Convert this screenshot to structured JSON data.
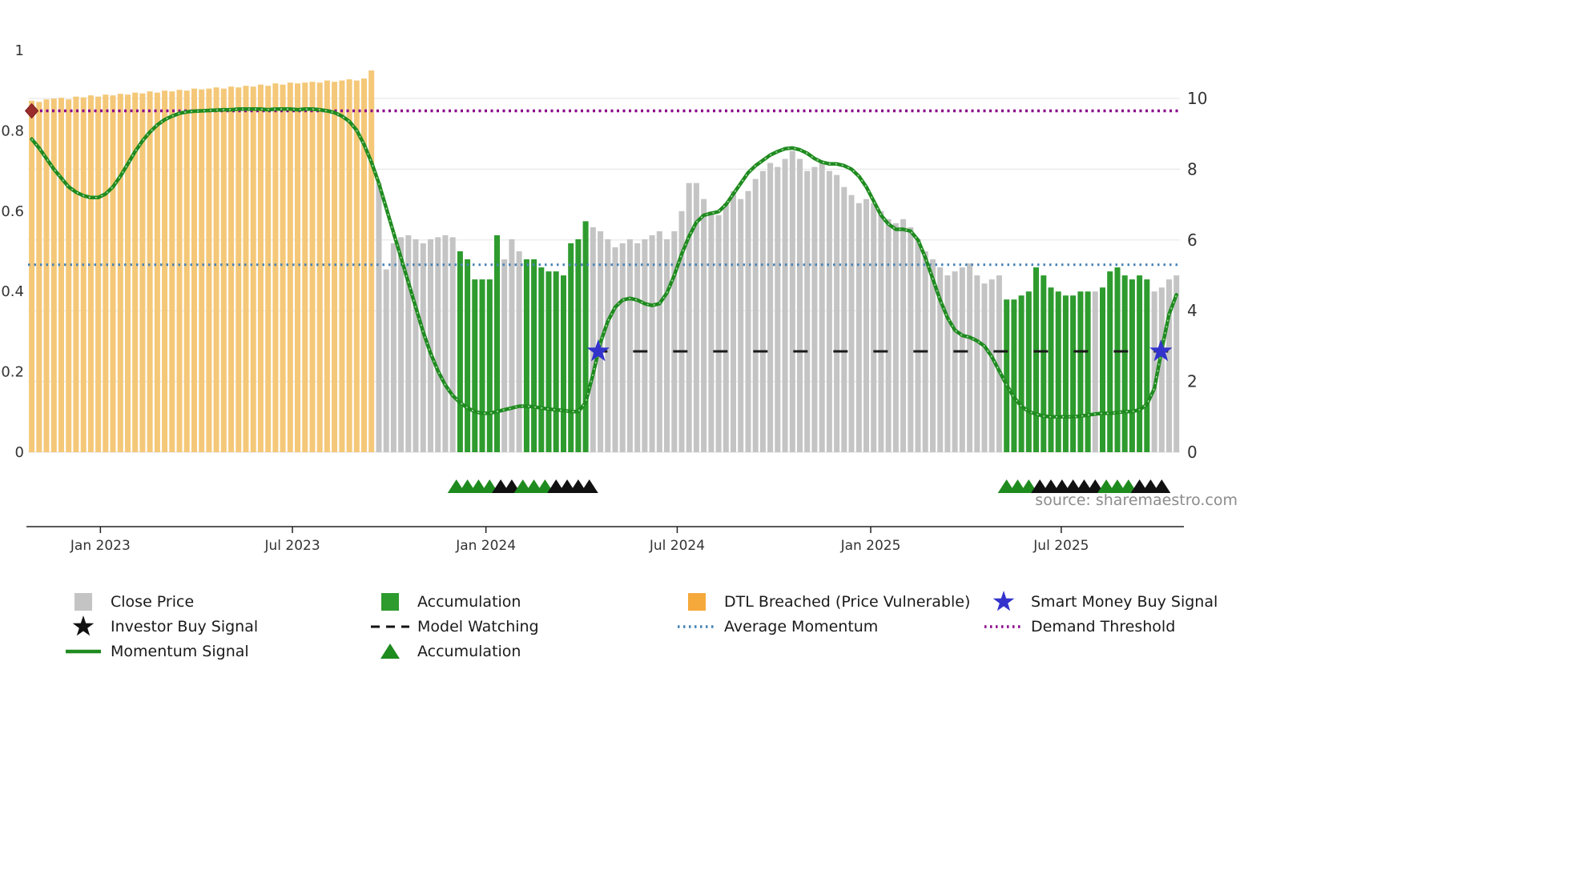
{
  "meta": {
    "source_text": "source: sharemaestro.com"
  },
  "chart_data": {
    "type": "bar+line",
    "x_axis": {
      "tick_labels": [
        "Jan 2023",
        "Jul 2023",
        "Jan 2024",
        "Jul 2024",
        "Jan 2025",
        "Jul 2025"
      ],
      "tick_positions_index": [
        9.3,
        35.3,
        61.5,
        87.4,
        113.6,
        139.4
      ],
      "n_points": 156
    },
    "left_axis": {
      "ticks": [
        1,
        0.8,
        0.6,
        0.4,
        0.2,
        0
      ],
      "range": [
        0,
        1
      ]
    },
    "right_axis": {
      "ticks": [
        10,
        8,
        6,
        4,
        2,
        0
      ],
      "range": [
        0,
        10
      ]
    },
    "colors": {
      "close": "#C4C4C4",
      "accumulation": "#2E9B2E",
      "dtl_breached": "#F4C878",
      "momentum": "#1F8B1F",
      "momentum_overlay": "#A6D7A6",
      "demand_threshold": "#8B008B",
      "average_momentum": "#4682B4",
      "model_watching": "#1A1A1A",
      "buy_star": "#3333CC",
      "marker_green": "#1E8B1E",
      "marker_black": "#111111",
      "start_marker_red": "#9B2C2C",
      "legend_dtl": "#F5A93B"
    },
    "close_price": {
      "scale": "left",
      "values": [
        0.875,
        0.872,
        0.878,
        0.88,
        0.882,
        0.878,
        0.885,
        0.883,
        0.888,
        0.885,
        0.89,
        0.888,
        0.892,
        0.89,
        0.895,
        0.893,
        0.898,
        0.895,
        0.9,
        0.898,
        0.902,
        0.9,
        0.905,
        0.903,
        0.905,
        0.908,
        0.905,
        0.91,
        0.908,
        0.912,
        0.91,
        0.915,
        0.912,
        0.918,
        0.915,
        0.92,
        0.918,
        0.92,
        0.922,
        0.92,
        0.925,
        0.922,
        0.925,
        0.928,
        0.925,
        0.93,
        0.95,
        0.67,
        0.455,
        0.52,
        0.535,
        0.54,
        0.53,
        0.52,
        0.53,
        0.535,
        0.54,
        0.535,
        0.5,
        0.48,
        0.43,
        0.43,
        0.43,
        0.54,
        0.48,
        0.53,
        0.5,
        0.48,
        0.48,
        0.46,
        0.45,
        0.45,
        0.44,
        0.52,
        0.53,
        0.575,
        0.56,
        0.55,
        0.53,
        0.51,
        0.52,
        0.53,
        0.52,
        0.53,
        0.54,
        0.55,
        0.53,
        0.55,
        0.6,
        0.67,
        0.67,
        0.63,
        0.6,
        0.59,
        0.62,
        0.65,
        0.63,
        0.65,
        0.68,
        0.7,
        0.72,
        0.71,
        0.73,
        0.75,
        0.73,
        0.7,
        0.71,
        0.72,
        0.7,
        0.69,
        0.66,
        0.64,
        0.62,
        0.63,
        0.62,
        0.6,
        0.58,
        0.57,
        0.58,
        0.56,
        0.53,
        0.5,
        0.48,
        0.46,
        0.44,
        0.45,
        0.46,
        0.47,
        0.44,
        0.42,
        0.43,
        0.44,
        0.38,
        0.38,
        0.39,
        0.4,
        0.46,
        0.44,
        0.41,
        0.4,
        0.39,
        0.39,
        0.4,
        0.4,
        0.4,
        0.41,
        0.45,
        0.46,
        0.44,
        0.43,
        0.44,
        0.43,
        0.4,
        0.41,
        0.43,
        0.44
      ]
    },
    "bar_segments": [
      {
        "from": 0,
        "to": 46,
        "type": "dtl_breached"
      },
      {
        "from": 47,
        "to": 57,
        "type": "close"
      },
      {
        "from": 58,
        "to": 63,
        "type": "accumulation"
      },
      {
        "from": 64,
        "to": 66,
        "type": "close"
      },
      {
        "from": 67,
        "to": 75,
        "type": "accumulation"
      },
      {
        "from": 76,
        "to": 131,
        "type": "close"
      },
      {
        "from": 132,
        "to": 143,
        "type": "accumulation"
      },
      {
        "from": 144,
        "to": 144,
        "type": "close"
      },
      {
        "from": 145,
        "to": 151,
        "type": "accumulation"
      },
      {
        "from": 152,
        "to": 155,
        "type": "close"
      }
    ],
    "momentum_signal": {
      "scale": "right",
      "values": [
        8.85,
        8.6,
        8.3,
        8.0,
        7.75,
        7.5,
        7.35,
        7.25,
        7.2,
        7.2,
        7.3,
        7.5,
        7.8,
        8.15,
        8.5,
        8.8,
        9.05,
        9.25,
        9.4,
        9.5,
        9.58,
        9.62,
        9.64,
        9.65,
        9.66,
        9.67,
        9.68,
        9.68,
        9.7,
        9.7,
        9.7,
        9.7,
        9.68,
        9.7,
        9.7,
        9.7,
        9.68,
        9.7,
        9.7,
        9.68,
        9.65,
        9.6,
        9.5,
        9.35,
        9.1,
        8.7,
        8.2,
        7.6,
        6.9,
        6.2,
        5.5,
        4.8,
        4.1,
        3.4,
        2.8,
        2.3,
        1.9,
        1.6,
        1.4,
        1.25,
        1.15,
        1.1,
        1.1,
        1.15,
        1.2,
        1.25,
        1.3,
        1.3,
        1.28,
        1.25,
        1.22,
        1.2,
        1.18,
        1.15,
        1.15,
        1.4,
        2.2,
        3.1,
        3.7,
        4.1,
        4.3,
        4.35,
        4.3,
        4.2,
        4.15,
        4.2,
        4.5,
        5.0,
        5.6,
        6.1,
        6.5,
        6.7,
        6.75,
        6.8,
        7.0,
        7.3,
        7.6,
        7.9,
        8.1,
        8.25,
        8.4,
        8.5,
        8.58,
        8.6,
        8.55,
        8.45,
        8.3,
        8.2,
        8.15,
        8.15,
        8.1,
        8.0,
        7.8,
        7.5,
        7.1,
        6.7,
        6.45,
        6.3,
        6.3,
        6.25,
        6.0,
        5.5,
        4.9,
        4.3,
        3.8,
        3.45,
        3.3,
        3.25,
        3.15,
        3.0,
        2.7,
        2.3,
        1.9,
        1.55,
        1.3,
        1.15,
        1.08,
        1.02,
        1.0,
        1.0,
        1.0,
        1.0,
        1.02,
        1.05,
        1.08,
        1.1,
        1.1,
        1.12,
        1.15,
        1.15,
        1.2,
        1.35,
        1.8,
        2.9,
        3.9,
        4.45
      ]
    },
    "threshold_lines": {
      "demand_threshold": {
        "value": 9.65,
        "scale": "right"
      },
      "average_momentum": {
        "value": 5.3,
        "scale": "right"
      },
      "model_watching": {
        "value": 2.85,
        "scale": "right",
        "start_index": 76
      }
    },
    "smart_money_buy_signals": [
      {
        "index": 76.7,
        "value": 2.85
      },
      {
        "index": 152.9,
        "value": 2.85
      }
    ],
    "demand_threshold_marker": {
      "index": 0.0,
      "value": 9.65
    },
    "event_markers": [
      {
        "index": 57.5,
        "type": "accumulation"
      },
      {
        "index": 59.0,
        "type": "accumulation"
      },
      {
        "index": 60.5,
        "type": "accumulation"
      },
      {
        "index": 62.0,
        "type": "accumulation"
      },
      {
        "index": 63.5,
        "type": "investor_buy"
      },
      {
        "index": 65.0,
        "type": "investor_buy"
      },
      {
        "index": 66.5,
        "type": "accumulation"
      },
      {
        "index": 68.0,
        "type": "accumulation"
      },
      {
        "index": 69.5,
        "type": "accumulation"
      },
      {
        "index": 71.0,
        "type": "investor_buy"
      },
      {
        "index": 72.5,
        "type": "investor_buy"
      },
      {
        "index": 74.0,
        "type": "investor_buy"
      },
      {
        "index": 75.5,
        "type": "investor_buy"
      },
      {
        "index": 132.0,
        "type": "accumulation"
      },
      {
        "index": 133.5,
        "type": "accumulation"
      },
      {
        "index": 135.0,
        "type": "accumulation"
      },
      {
        "index": 136.5,
        "type": "investor_buy"
      },
      {
        "index": 138.0,
        "type": "investor_buy"
      },
      {
        "index": 139.5,
        "type": "investor_buy"
      },
      {
        "index": 141.0,
        "type": "investor_buy"
      },
      {
        "index": 142.5,
        "type": "investor_buy"
      },
      {
        "index": 144.0,
        "type": "investor_buy"
      },
      {
        "index": 145.5,
        "type": "accumulation"
      },
      {
        "index": 147.0,
        "type": "accumulation"
      },
      {
        "index": 148.5,
        "type": "accumulation"
      },
      {
        "index": 150.0,
        "type": "investor_buy"
      },
      {
        "index": 151.5,
        "type": "investor_buy"
      },
      {
        "index": 153.0,
        "type": "investor_buy"
      }
    ]
  },
  "legend": {
    "columns": [
      [
        {
          "label": "Close Price",
          "marker": "square",
          "color": "#C4C4C4"
        },
        {
          "label": "Investor Buy Signal",
          "marker": "star",
          "color": "#111111"
        },
        {
          "label": "Momentum Signal",
          "marker": "line",
          "color": "#1F8B1F"
        }
      ],
      [
        {
          "label": "Accumulation",
          "marker": "square",
          "color": "#2E9B2E"
        },
        {
          "label": "Model Watching",
          "marker": "dashed-line",
          "color": "#111111"
        },
        {
          "label": "Accumulation",
          "marker": "triangle",
          "color": "#1E8B1E"
        }
      ],
      [
        {
          "label": "DTL Breached (Price Vulnerable)",
          "marker": "square",
          "color": "#F5A93B"
        },
        {
          "label": "Average Momentum",
          "marker": "dotted-line",
          "color": "#4682B4"
        }
      ],
      [
        {
          "label": "Smart Money Buy Signal",
          "marker": "star",
          "color": "#3333CC"
        },
        {
          "label": "Demand Threshold",
          "marker": "dotted-line",
          "color": "#8B008B"
        }
      ]
    ]
  }
}
